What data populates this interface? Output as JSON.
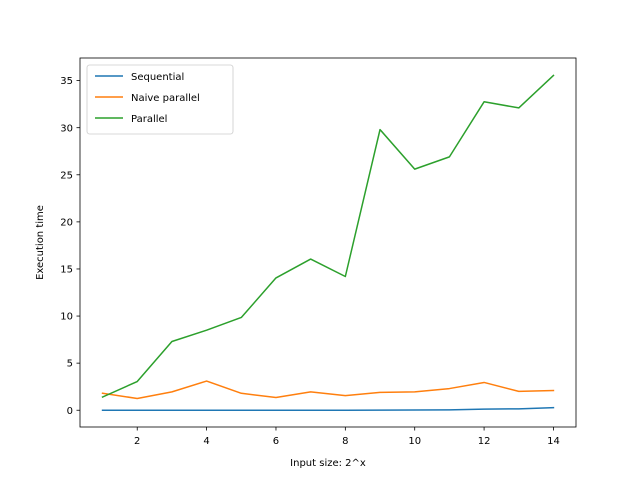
{
  "chart_data": {
    "type": "line",
    "title": "",
    "xlabel": "Input size: 2^x",
    "ylabel": "Execution time",
    "xlim": [
      0.35,
      14.65
    ],
    "ylim": [
      -1.78,
      37.4
    ],
    "xticks": [
      2,
      4,
      6,
      8,
      10,
      12,
      14
    ],
    "yticks": [
      0,
      5,
      10,
      15,
      20,
      25,
      30,
      35
    ],
    "grid": false,
    "legend_position": "top-left",
    "x": [
      1,
      2,
      3,
      4,
      5,
      6,
      7,
      8,
      9,
      10,
      11,
      12,
      13,
      14
    ],
    "series": [
      {
        "name": "Sequential",
        "color": "#1f77b4",
        "values": [
          0.0,
          0.0,
          0.0,
          0.0,
          0.0,
          0.0,
          0.0,
          0.0,
          0.01,
          0.02,
          0.04,
          0.12,
          0.15,
          0.28
        ]
      },
      {
        "name": "Naive parallel",
        "color": "#ff7f0e",
        "values": [
          1.8,
          1.25,
          1.95,
          3.1,
          1.8,
          1.35,
          1.95,
          1.55,
          1.9,
          1.95,
          2.3,
          2.95,
          2.0,
          2.1
        ]
      },
      {
        "name": "Parallel",
        "color": "#2ca02c",
        "values": [
          1.4,
          3.05,
          7.3,
          8.5,
          9.85,
          14.05,
          16.05,
          14.2,
          29.8,
          25.6,
          26.9,
          32.75,
          32.1,
          35.55
        ]
      }
    ]
  }
}
